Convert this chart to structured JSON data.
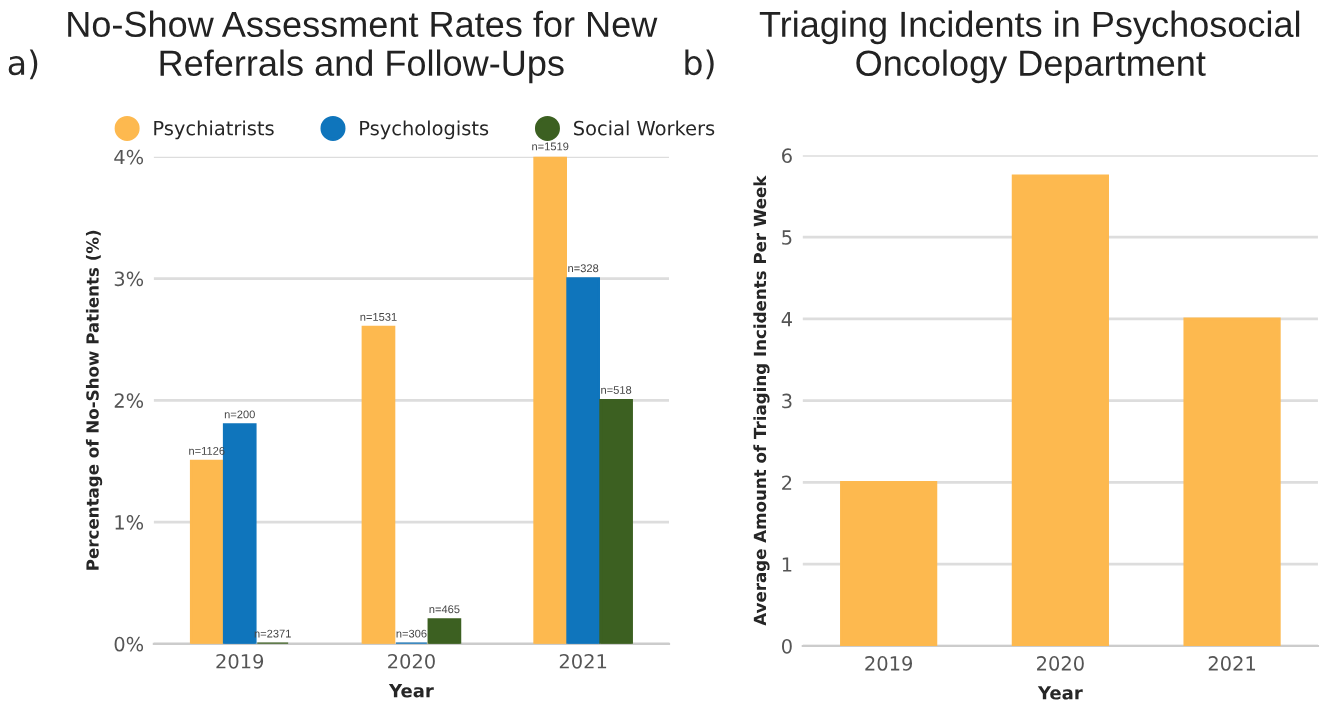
{
  "chart_data": [
    {
      "type": "bar",
      "title": "No-Show Assessment Rates for New Referrals and Follow-Ups",
      "xlabel": "Year",
      "ylabel": "Percentage of No-Show Patients (%)",
      "annotations": [
        "a)",
        "n=1126",
        "n=200",
        "n=2371",
        "n=1531",
        "n=306",
        "n=465",
        "n=1519",
        "n=328",
        "n=518"
      ],
      "categories": [
        "2019",
        "2020",
        "2021"
      ],
      "series": [
        {
          "name": "Psychiatrists",
          "color": "#fdb94f",
          "values": [
            1.5,
            2.6,
            4.0
          ]
        },
        {
          "name": "Psychologists",
          "color": "#0f75bc",
          "values": [
            1.8,
            0,
            3.0
          ]
        },
        {
          "name": "Social Workers",
          "color": "#3c6021",
          "values": [
            0,
            0.2,
            2.0
          ]
        }
      ],
      "ylim": [
        0,
        4
      ],
      "yticks": [
        {
          "value": 0,
          "label": "0%"
        },
        {
          "value": 1,
          "label": "1%"
        },
        {
          "value": 2,
          "label": "2%"
        },
        {
          "value": 3,
          "label": "3%"
        },
        {
          "value": 4,
          "label": "4%"
        }
      ],
      "grid": "y",
      "legend": "top"
    },
    {
      "type": "bar",
      "title": "Triaging Incidents in Psychosocial Oncology Department",
      "xlabel": "Year",
      "ylabel": "Average Amount of Triaging Incidents Per Week",
      "annotations": [
        "b)"
      ],
      "categories": [
        "2019",
        "2020",
        "2021"
      ],
      "values": [
        2,
        5.75,
        4
      ],
      "color": "#fdb94f",
      "ylim": [
        0,
        6
      ],
      "yticks": [
        0,
        1,
        2,
        3,
        4,
        5,
        6
      ],
      "grid": "y"
    }
  ]
}
